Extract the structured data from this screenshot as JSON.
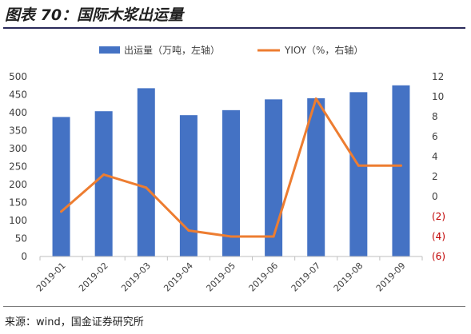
{
  "figure": {
    "title": "图表 70：国际木浆出运量",
    "source": "来源：wind，国金证券研究所"
  },
  "chart_data": {
    "type": "bar",
    "categories": [
      "2019-01",
      "2019-02",
      "2019-03",
      "2019-04",
      "2019-05",
      "2019-06",
      "2019-07",
      "2019-08",
      "2019-09"
    ],
    "series": [
      {
        "name": "出运量（万吨，左轴）",
        "type": "bar",
        "axis": "left",
        "color": "#4472C4",
        "values": [
          388,
          404,
          468,
          393,
          407,
          437,
          440,
          457,
          476
        ]
      },
      {
        "name": "YIOY（%，右轴）",
        "type": "line",
        "axis": "right",
        "color": "#ED7D31",
        "values": [
          -1.5,
          2.2,
          0.9,
          -3.4,
          -4.0,
          -4.0,
          9.8,
          3.1,
          3.1
        ]
      }
    ],
    "y_left": {
      "min": 0,
      "max": 500,
      "ticks": [
        0,
        50,
        100,
        150,
        200,
        250,
        300,
        350,
        400,
        450,
        500
      ],
      "tick_labels": [
        "0",
        "50",
        "100",
        "150",
        "200",
        "250",
        "300",
        "350",
        "400",
        "450",
        "500"
      ]
    },
    "y_right": {
      "min": -6,
      "max": 12,
      "ticks": [
        -6,
        -4,
        -2,
        0,
        2,
        4,
        6,
        8,
        10,
        12
      ],
      "tick_labels": [
        "(6)",
        "(4)",
        "(2)",
        "0",
        "2",
        "4",
        "6",
        "8",
        "10",
        "12"
      ],
      "negative_color": "#C00000"
    },
    "legend": {
      "position": "top"
    },
    "grid": false
  }
}
